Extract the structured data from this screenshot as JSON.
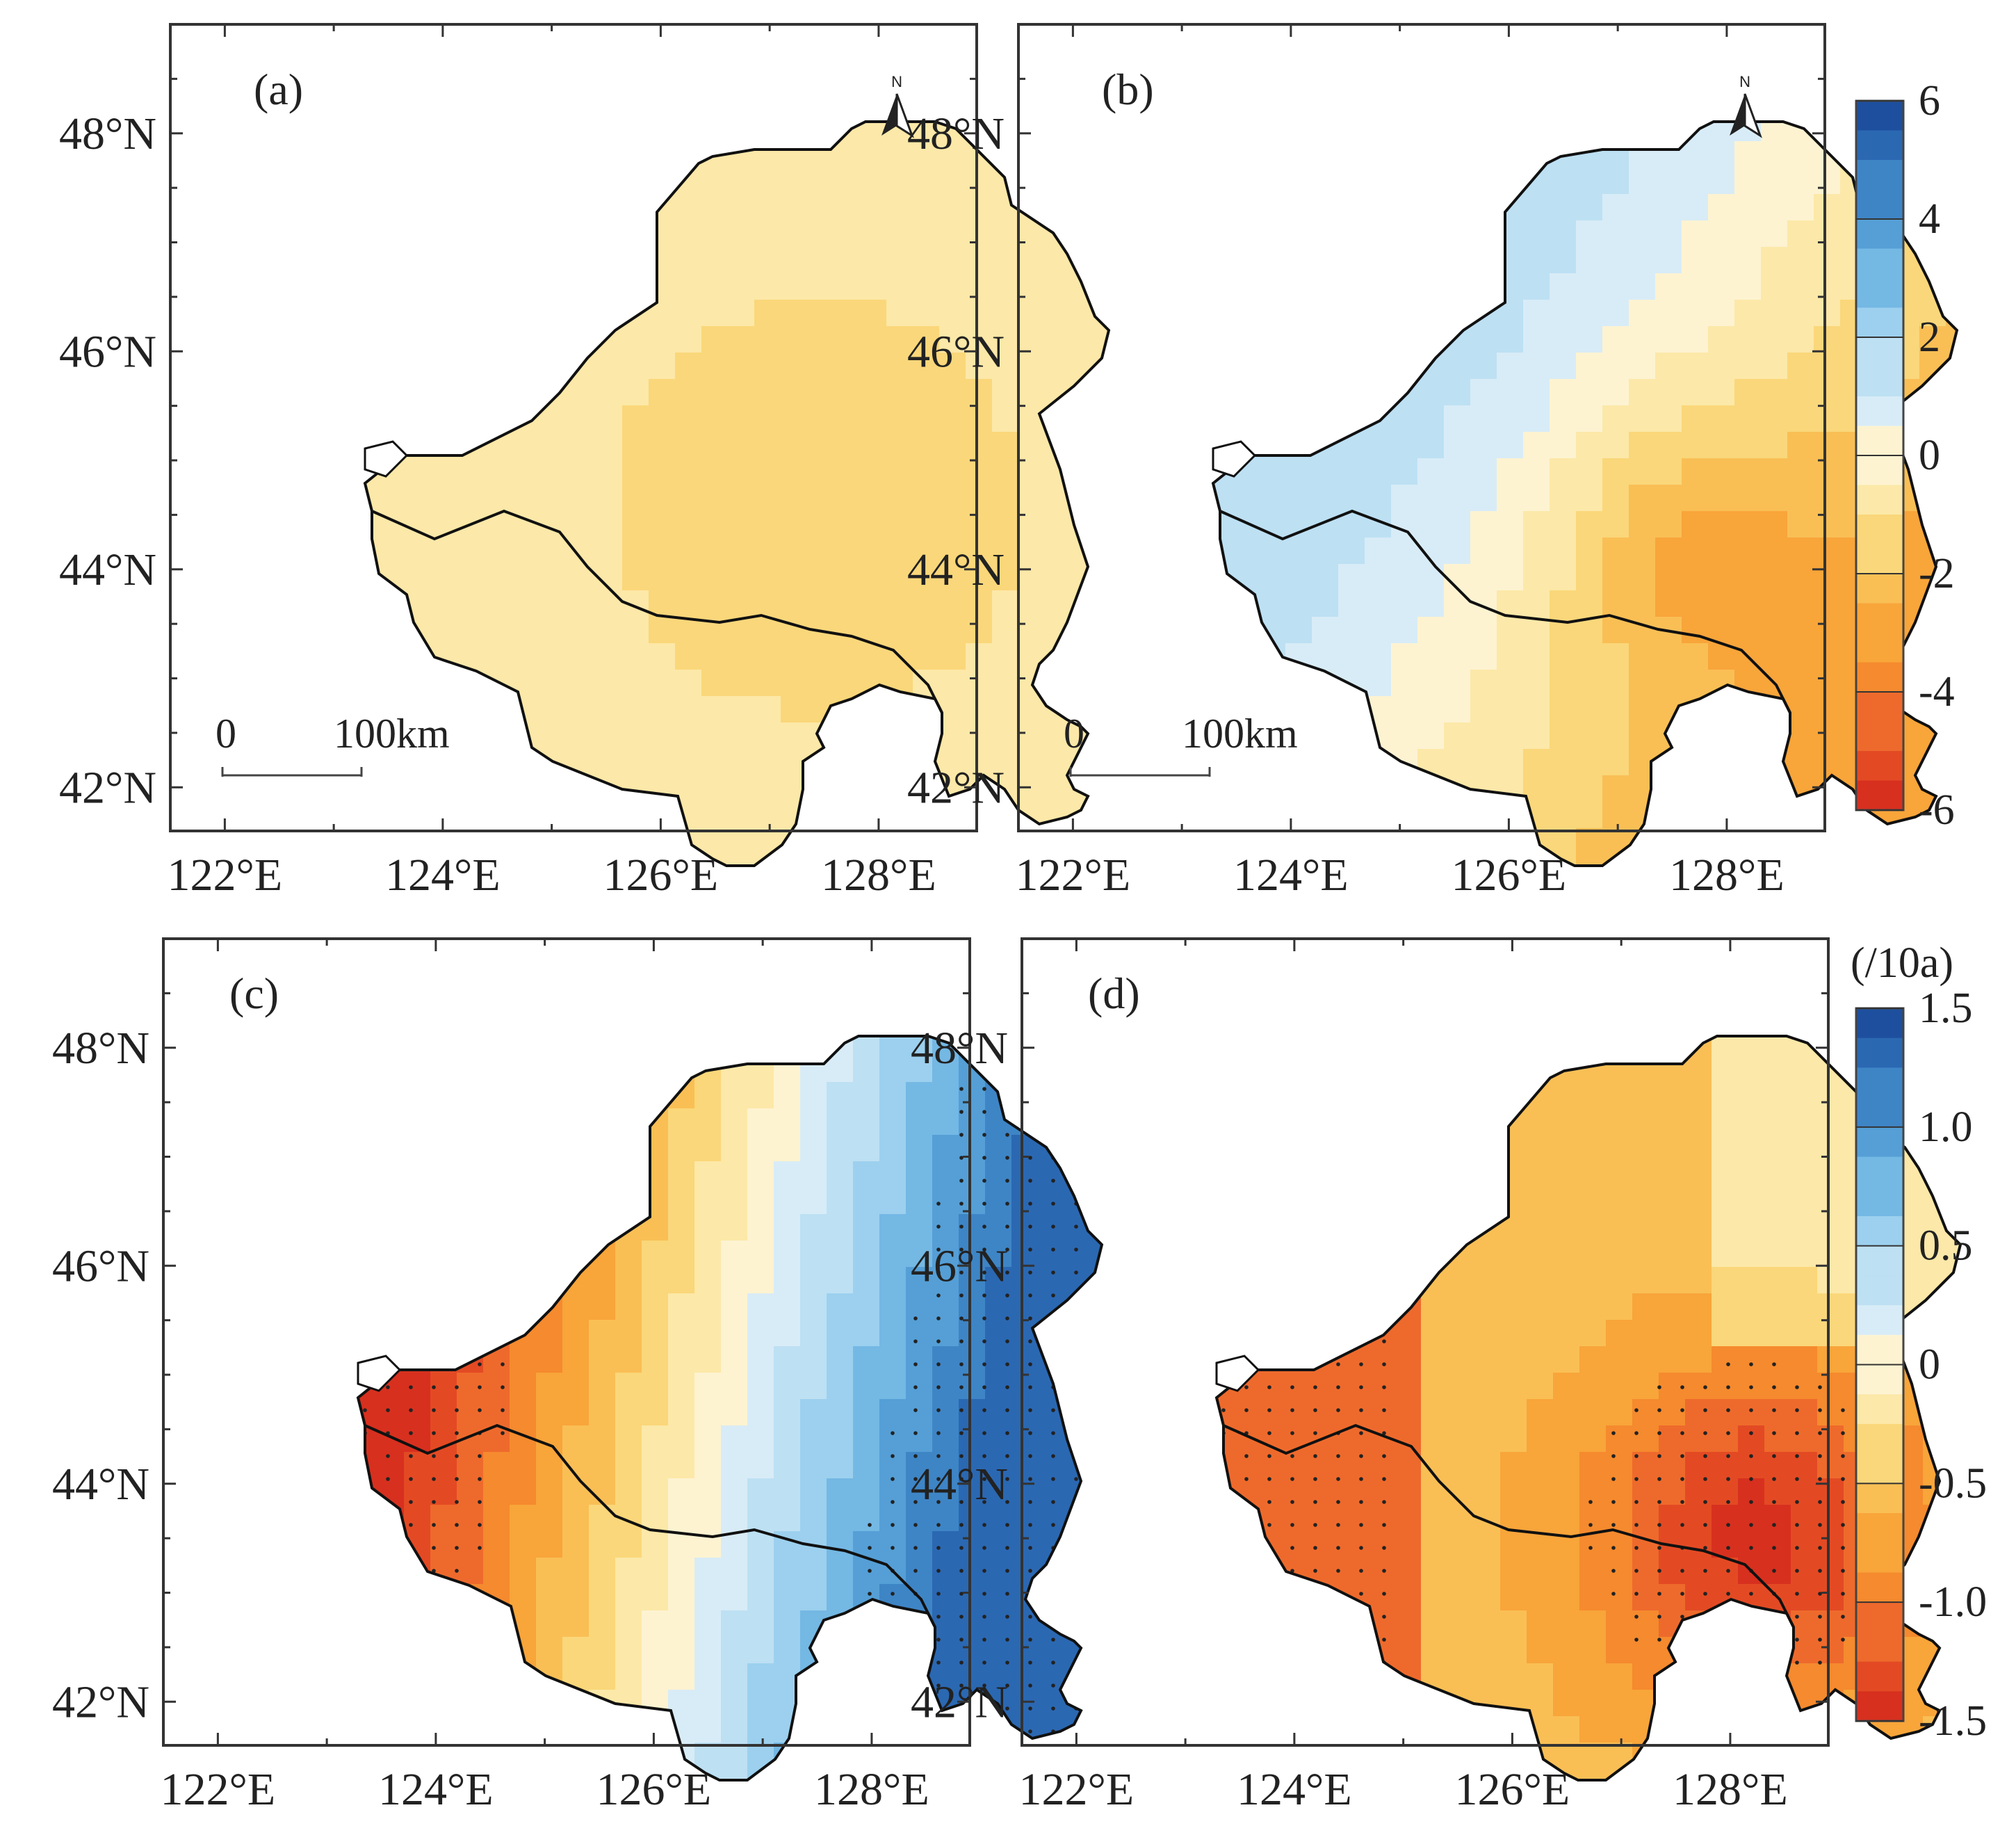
{
  "figure": {
    "lon_ticks": [
      "122°E",
      "124°E",
      "126°E",
      "128°E"
    ],
    "lat_ticks": [
      "42°N",
      "44°N",
      "46°N",
      "48°N"
    ],
    "lon_range": [
      121.5,
      128.9
    ],
    "lat_range": [
      41.6,
      49.0
    ],
    "panels": [
      {
        "id": "a",
        "label": "(a)",
        "scale_bar": {
          "start": "0",
          "end": "100km"
        },
        "north_arrow": "N",
        "pattern": "uniform_light",
        "stippling": false
      },
      {
        "id": "b",
        "label": "(b)",
        "scale_bar": {
          "start": "0",
          "end": "100km"
        },
        "north_arrow": "N",
        "pattern": "west_pos_east_neg",
        "stippling": false
      },
      {
        "id": "c",
        "label": "(c)",
        "pattern": "west_neg_east_pos",
        "stippling": true
      },
      {
        "id": "d",
        "label": "(d)",
        "pattern": "mostly_neg",
        "stippling": true
      }
    ],
    "colorbars": [
      {
        "id": "top",
        "ticks": [
          "6",
          "4",
          "2",
          "0",
          "-2",
          "-4",
          "-6"
        ],
        "range": [
          -6,
          6
        ],
        "unit": ""
      },
      {
        "id": "bottom",
        "unit": "(/10a)",
        "ticks": [
          "1.5",
          "1.0",
          "0.5",
          "0",
          "-0.5",
          "-1.0",
          "-1.5"
        ],
        "range": [
          -1.5,
          1.5
        ]
      }
    ],
    "colors": {
      "ramp": [
        "#d7301f",
        "#e34a24",
        "#ee6a2c",
        "#f58a2e",
        "#f8a53a",
        "#f9bf55",
        "#fad77a",
        "#fce8a8",
        "#fdf3d1",
        "#d8ecf7",
        "#bde0f3",
        "#9cd0ee",
        "#74b8e4",
        "#559fd6",
        "#3e85c6",
        "#2b68b2",
        "#1d4f9e"
      ],
      "outline": "#111111",
      "frame": "#333333"
    }
  }
}
